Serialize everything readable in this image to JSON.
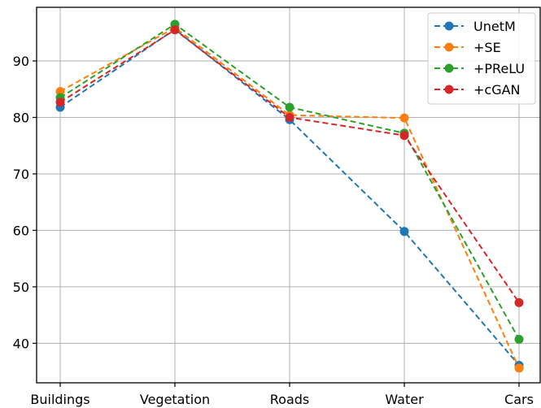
{
  "chart_data": {
    "type": "line",
    "categories": [
      "Buildings",
      "Vegetation",
      "Roads",
      "Water",
      "Cars"
    ],
    "ylim": [
      33,
      99.5
    ],
    "yticks": [
      40,
      50,
      60,
      70,
      80,
      90
    ],
    "grid": true,
    "legend_position": "top-right",
    "series": [
      {
        "name": "UnetM",
        "color": "#1f77b4",
        "values": [
          81.8,
          95.6,
          79.6,
          59.8,
          36.1
        ]
      },
      {
        "name": "+SE",
        "color": "#ff7f0e",
        "values": [
          84.6,
          95.9,
          80.4,
          79.9,
          35.6
        ]
      },
      {
        "name": "+PReLU",
        "color": "#2ca02c",
        "values": [
          83.5,
          96.5,
          81.8,
          77.2,
          40.7
        ]
      },
      {
        "name": "+cGAN",
        "color": "#d62728",
        "values": [
          82.7,
          95.5,
          80.0,
          76.8,
          47.2
        ]
      }
    ]
  }
}
